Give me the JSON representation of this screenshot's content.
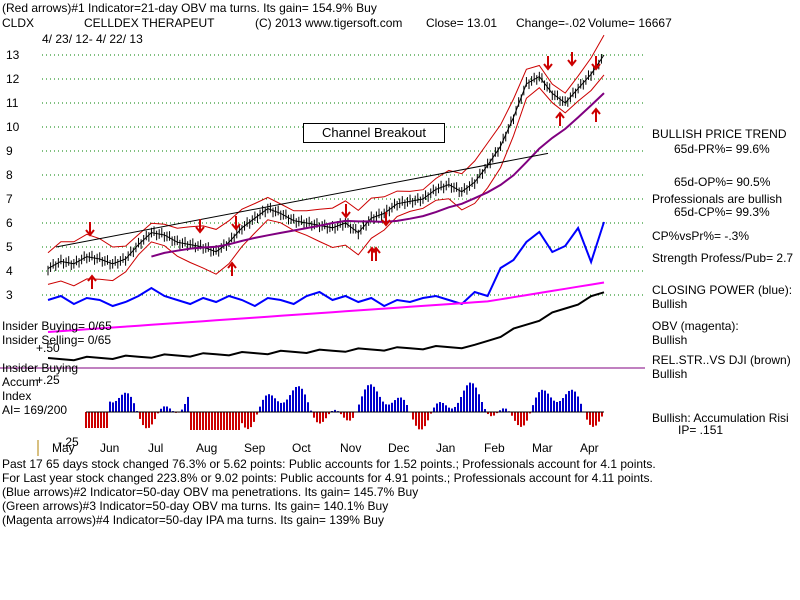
{
  "header": {
    "line1": "(Red arrows)#1 Indicator=21-day OBV ma turns.  Its gain= 154.9% Buy",
    "symbol": "CLDX",
    "company": "CELLDEX THERAPEUT",
    "copyright": "(C) 2013 www.tigersoft.com",
    "close": "Close=  13.01",
    "change": "Change=-.02",
    "volume": "Volume= 16667",
    "date_range": "4/ 23/ 12-  4/ 22/ 13"
  },
  "annotation": "Channel Breakout",
  "left_labels": {
    "insider_buying": "Insider Buying= 0/65",
    "insider_selling": "Insider Selling= 0/65",
    "insider_buying2": "Insider Buying",
    "accum": "Accum",
    "index": "Index",
    "ai": "AI= 169/200",
    "plus50": "+.50",
    "plus25": "+.25",
    "minus25": "-.25"
  },
  "right_panel": {
    "trend_title": "BULLISH PRICE TREND",
    "pr65": "65d-PR%= 99.6%",
    "op65": "65d-OP%= 90.5%",
    "prof_bullish": "Professionals are bullish",
    "cp65": "65d-CP%= 99.3%",
    "cpvspr": "CP%vsPr%= -.3%",
    "strength": "Strength Profess/Pub= 2.7",
    "closing_power": "CLOSING POWER (blue):",
    "closing_power_val": "Bullish",
    "obv": "OBV (magenta):",
    "obv_val": "Bullish",
    "relstr": "REL.STR..VS DJI (brown)",
    "relstr_val": "Bullish",
    "accum_risk": "Bullish: Accumulation Risi",
    "ip": "IP=  .151"
  },
  "footer": {
    "line1a": "Past 17 65 days stock changed  76.3% or  5.62 points:  Public accounts for  1.52 points.;  Professionals account for  4.1 points.",
    "line2": "For Last year stock changed  223.8% or  9.02 points:  Public accounts for  4.91 points.;  Professionals account for  4.11 points.",
    "line3": "(Blue arrows)#2 Indicator=50-day OBV ma penetrations.  Its gain= 145.7% Buy",
    "line4": "(Green arrows)#3 Indicator=50-day OBV ma turns.  Its gain= 140.1% Buy",
    "line5": "(Magenta arrows)#4 Indicator=50-day IPA ma turns.  Its gain= 139% Buy"
  },
  "colors": {
    "price": "#000000",
    "bands": "#cc0000",
    "ma": "#800080",
    "closing_power": "#0000ff",
    "obv": "#ff00ff",
    "relstr": "#000000",
    "accum": "#0000cc",
    "accum_neg": "#cc0000",
    "grid": "#008000"
  },
  "chart_data": {
    "type": "line",
    "title": "CLDX CELLDEX THERAPEUT",
    "months": [
      "May",
      "Jun",
      "Jul",
      "Aug",
      "Sep",
      "Oct",
      "Nov",
      "Dec",
      "Jan",
      "Feb",
      "Mar",
      "Apr"
    ],
    "y_ticks": [
      "13",
      "12",
      "11",
      "10",
      "9",
      "8",
      "7",
      "6",
      "5",
      "4",
      "3"
    ],
    "ylim": [
      2.6,
      13.7
    ],
    "accum_ticks": [
      "+.50",
      "+.25",
      "-.25"
    ],
    "price_weekly": [
      4.1,
      4.4,
      4.3,
      4.6,
      4.5,
      4.3,
      4.5,
      5.1,
      5.6,
      5.5,
      5.2,
      5.1,
      5.0,
      4.8,
      5.2,
      5.8,
      6.2,
      6.6,
      6.4,
      6.1,
      6.0,
      5.9,
      5.8,
      6.0,
      5.6,
      6.2,
      6.4,
      6.8,
      6.9,
      7.0,
      7.4,
      7.6,
      7.3,
      7.7,
      8.4,
      9.2,
      10.4,
      11.8,
      12.1,
      11.4,
      11.0,
      11.6,
      12.2,
      13.0
    ]
  }
}
